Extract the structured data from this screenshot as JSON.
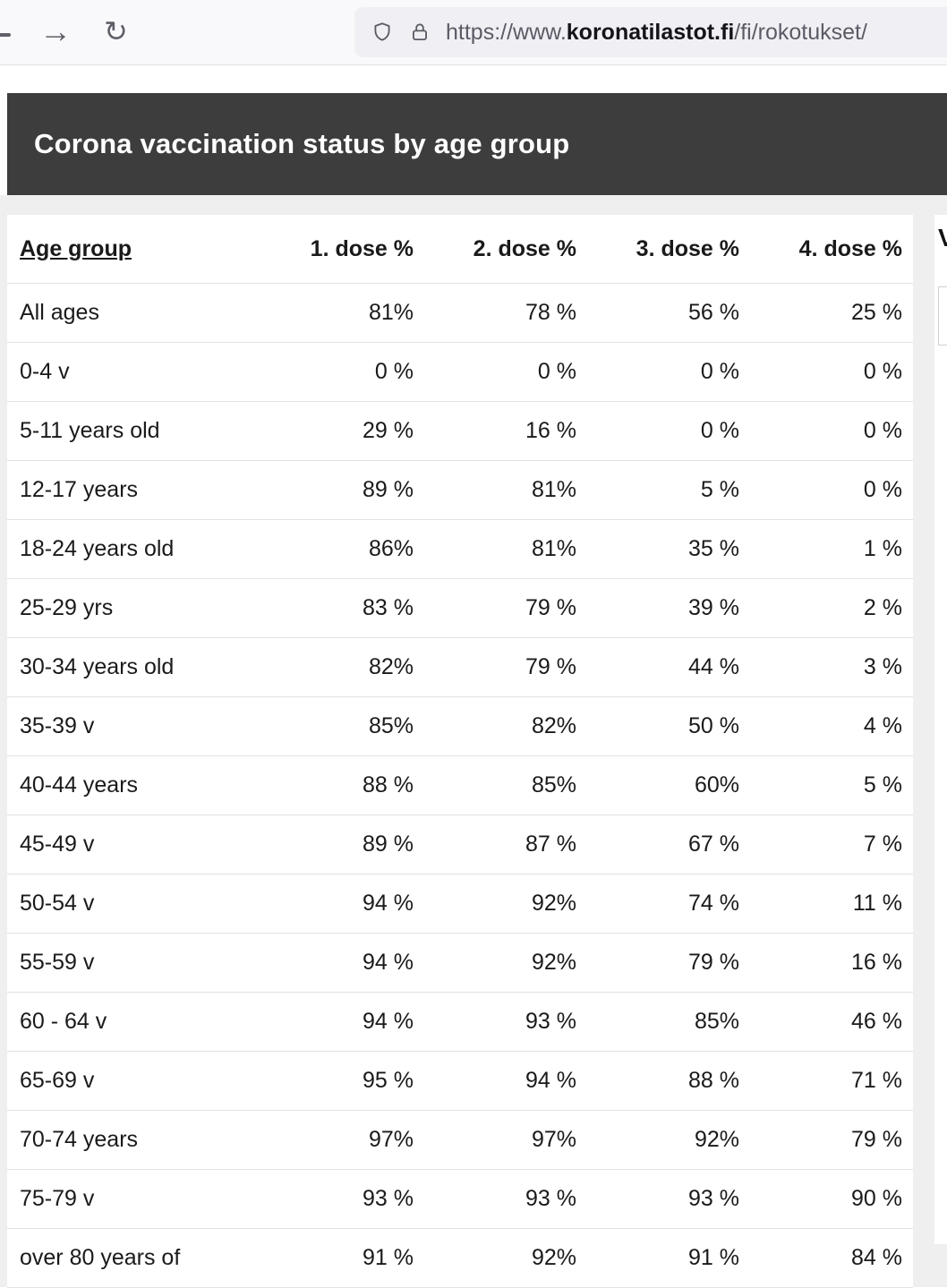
{
  "browser": {
    "url_prefix": "https://www.",
    "url_domain": "koronatilastot.fi",
    "url_path": "/fi/rokotukset/"
  },
  "header": {
    "title": "Corona vaccination status by age group"
  },
  "table": {
    "columns": [
      "Age group",
      "1. dose %",
      "2. dose %",
      "3. dose %",
      "4. dose %"
    ],
    "rows": [
      {
        "age": "All ages",
        "doses": [
          "81%",
          "78 %",
          "56 %",
          "25 %"
        ]
      },
      {
        "age": "0-4 v",
        "doses": [
          "0 %",
          "0 %",
          "0 %",
          "0 %"
        ]
      },
      {
        "age": "5-11 years old",
        "doses": [
          "29 %",
          "16 %",
          "0 %",
          "0 %"
        ]
      },
      {
        "age": "12-17 years",
        "doses": [
          "89 %",
          "81%",
          "5 %",
          "0 %"
        ]
      },
      {
        "age": "18-24 years old",
        "doses": [
          "86%",
          "81%",
          "35 %",
          "1 %"
        ]
      },
      {
        "age": "25-29 yrs",
        "doses": [
          "83 %",
          "79 %",
          "39 %",
          "2 %"
        ]
      },
      {
        "age": "30-34 years old",
        "doses": [
          "82%",
          "79 %",
          "44 %",
          "3 %"
        ]
      },
      {
        "age": "35-39 v",
        "doses": [
          "85%",
          "82%",
          "50 %",
          "4 %"
        ]
      },
      {
        "age": "40-44 years",
        "doses": [
          "88 %",
          "85%",
          "60%",
          "5 %"
        ]
      },
      {
        "age": "45-49 v",
        "doses": [
          "89 %",
          "87 %",
          "67 %",
          "7 %"
        ]
      },
      {
        "age": "50-54 v",
        "doses": [
          "94 %",
          "92%",
          "74 %",
          "11 %"
        ]
      },
      {
        "age": "55-59 v",
        "doses": [
          "94 %",
          "92%",
          "79 %",
          "16 %"
        ]
      },
      {
        "age": "60 - 64 v",
        "doses": [
          "94 %",
          "93 %",
          "85%",
          "46 %"
        ]
      },
      {
        "age": "65-69 v",
        "doses": [
          "95 %",
          "94 %",
          "88 %",
          "71 %"
        ]
      },
      {
        "age": "70-74 years",
        "doses": [
          "97%",
          "97%",
          "92%",
          "79 %"
        ]
      },
      {
        "age": "75-79 v",
        "doses": [
          "93 %",
          "93 %",
          "93 %",
          "90 %"
        ]
      },
      {
        "age": "over 80 years of",
        "doses": [
          "91 %",
          "92%",
          "91 %",
          "84 %"
        ]
      }
    ]
  },
  "side_panel": {
    "partial_text": "V"
  },
  "colors": {
    "header_band": "#3d3d3d",
    "content_background": "#efefef",
    "urlbar_background": "#f0f0f4",
    "row_separator": "#e2e2e2",
    "text": "#1a1a1a"
  }
}
